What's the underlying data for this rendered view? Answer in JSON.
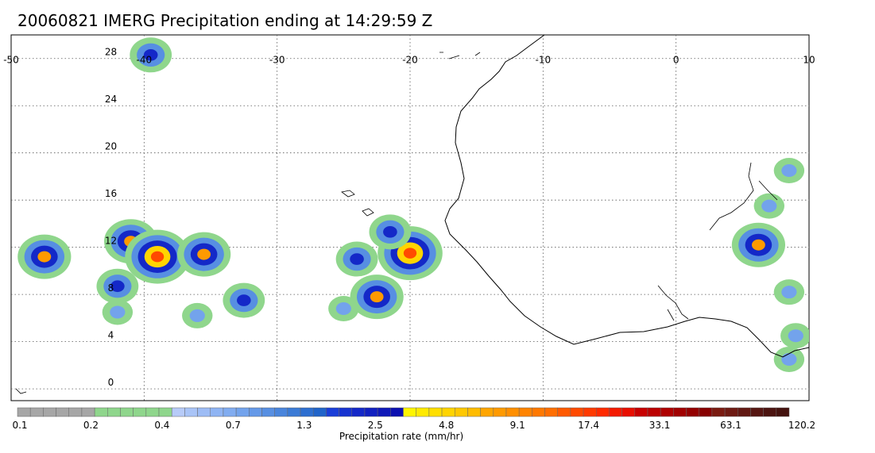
{
  "title": "20060821 IMERG Precipitation ending at 14:29:59 Z",
  "map": {
    "lon_range": [
      -50,
      10
    ],
    "lat_range": [
      -1,
      30
    ],
    "lon_ticks": [
      -50,
      -40,
      -30,
      -20,
      -10,
      0,
      10
    ],
    "lon_tick_labels": [
      "-50",
      "-40",
      "-30",
      "-20",
      "-10",
      "0",
      "10"
    ],
    "lat_ticks": [
      0,
      4,
      8,
      12,
      16,
      20,
      24,
      28
    ],
    "lat_tick_labels": [
      "0",
      "4",
      "8",
      "12",
      "16",
      "20",
      "24",
      "28"
    ],
    "gridlines": "dotted"
  },
  "colorbar": {
    "label": "Precipitation rate (mm/hr)",
    "tick_labels": [
      "0.1",
      "0.2",
      "0.4",
      "0.7",
      "1.3",
      "2.5",
      "4.8",
      "9.1",
      "17.4",
      "33.1",
      "63.1",
      "120.2"
    ],
    "colors": [
      "#a6a6a6",
      "#a6a6a6",
      "#a6a6a6",
      "#a6a6a6",
      "#a6a6a6",
      "#a6a6a6",
      "#8fd68c",
      "#8fd68c",
      "#8fd68c",
      "#8fd68c",
      "#8fd68c",
      "#8fd68c",
      "#b7cbf8",
      "#a9c4f7",
      "#9dbcf5",
      "#8fb4f3",
      "#81acf0",
      "#73a3ec",
      "#6599e8",
      "#578fe2",
      "#4985dc",
      "#3b7bd6",
      "#2d6fd0",
      "#2064c9",
      "#1a3ed8",
      "#1733d0",
      "#1428c8",
      "#1120c0",
      "#0e18b8",
      "#0b10b0",
      "#fff500",
      "#ffea00",
      "#ffdf00",
      "#ffd400",
      "#ffc800",
      "#ffbc00",
      "#ffa500",
      "#ff9a00",
      "#ff8f00",
      "#ff8400",
      "#ff7900",
      "#ff6e00",
      "#ff5a00",
      "#ff4a00",
      "#ff3a00",
      "#ff2a00",
      "#f41a00",
      "#e80e00",
      "#c80000",
      "#bb0000",
      "#ae0000",
      "#a10000",
      "#940000",
      "#870000",
      "#7a1a10",
      "#6e1a12",
      "#621812",
      "#561612",
      "#4c1410",
      "#44120e"
    ]
  },
  "precip_cells": [
    {
      "lon": -47.5,
      "lat": 11.2,
      "intensity": 3
    },
    {
      "lon": -42.0,
      "lat": 8.7,
      "intensity": 2
    },
    {
      "lon": -41.0,
      "lat": 12.5,
      "intensity": 3
    },
    {
      "lon": -39.0,
      "lat": 11.2,
      "intensity": 4
    },
    {
      "lon": -35.5,
      "lat": 11.4,
      "intensity": 3
    },
    {
      "lon": -39.5,
      "lat": 28.3,
      "intensity": 2
    },
    {
      "lon": -42.0,
      "lat": 6.5,
      "intensity": 1
    },
    {
      "lon": -36.0,
      "lat": 6.2,
      "intensity": 1
    },
    {
      "lon": -32.5,
      "lat": 7.5,
      "intensity": 2
    },
    {
      "lon": -20.0,
      "lat": 11.5,
      "intensity": 4
    },
    {
      "lon": -22.5,
      "lat": 7.8,
      "intensity": 3
    },
    {
      "lon": -24.0,
      "lat": 11.0,
      "intensity": 2
    },
    {
      "lon": -21.5,
      "lat": 13.3,
      "intensity": 2
    },
    {
      "lon": -25.0,
      "lat": 6.8,
      "intensity": 1
    },
    {
      "lon": 6.2,
      "lat": 12.2,
      "intensity": 3
    },
    {
      "lon": 8.5,
      "lat": 8.2,
      "intensity": 1
    },
    {
      "lon": 9.0,
      "lat": 4.5,
      "intensity": 1
    },
    {
      "lon": 8.5,
      "lat": 2.5,
      "intensity": 1
    },
    {
      "lon": 8.5,
      "lat": 18.5,
      "intensity": 1
    },
    {
      "lon": 7.0,
      "lat": 15.5,
      "intensity": 1
    }
  ]
}
